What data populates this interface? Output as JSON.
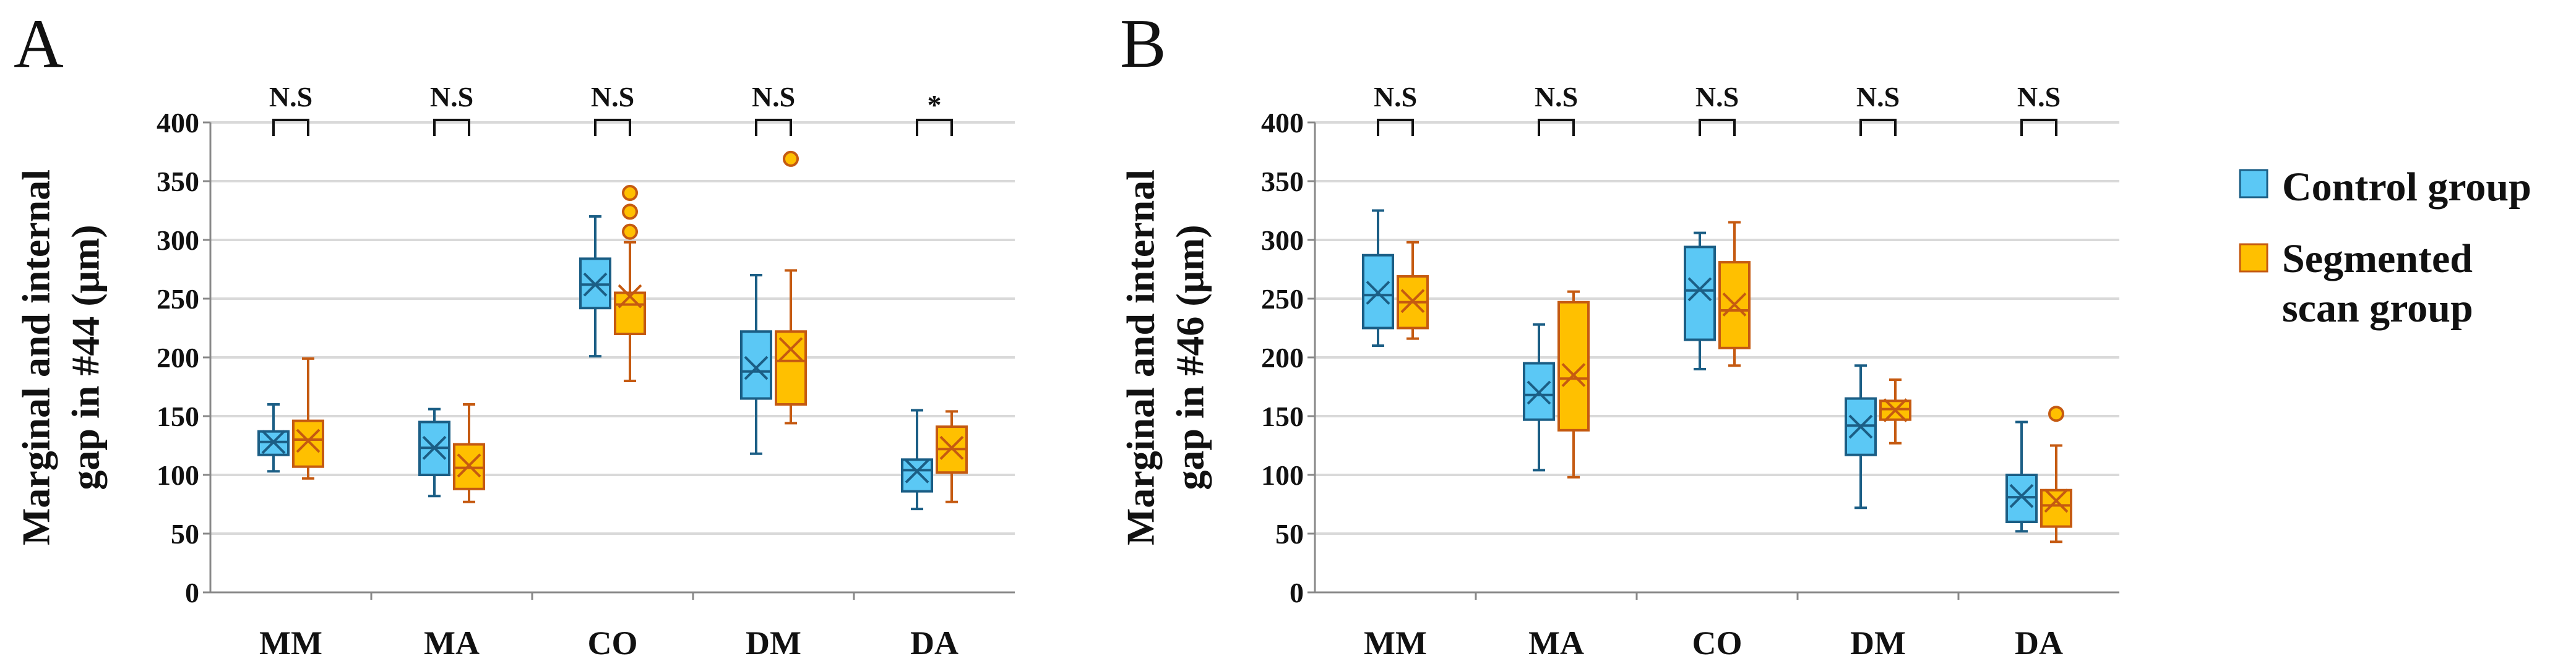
{
  "colors": {
    "control_fill": "#5BC8F5",
    "control_edge": "#1B5E85",
    "seg_fill": "#FFC000",
    "seg_edge": "#C55A11",
    "grid": "#D9D9D9",
    "axis": "#888888",
    "text": "#111111"
  },
  "legend": {
    "items": [
      {
        "label": "Control group",
        "color": "#5BC8F5"
      },
      {
        "label": "Segmented",
        "label2": "scan group",
        "color": "#FFC000"
      }
    ]
  },
  "chart_data": [
    {
      "type": "box",
      "panel_label": "A",
      "ylabel_line1": "Marginal and internal",
      "ylabel_line2": "gap in #44 (μm)",
      "ylim": [
        0,
        400
      ],
      "yticks": [
        0,
        50,
        100,
        150,
        200,
        250,
        300,
        350,
        400
      ],
      "categories": [
        "MM",
        "MA",
        "CO",
        "DM",
        "DA"
      ],
      "significance": [
        "N.S",
        "N.S",
        "N.S",
        "N.S",
        "*"
      ],
      "series": [
        {
          "name": "Control group",
          "boxes": [
            {
              "min": 103,
              "q1": 117,
              "median": 128,
              "q3": 137,
              "max": 160,
              "mean": 128,
              "outliers": []
            },
            {
              "min": 82,
              "q1": 100,
              "median": 123,
              "q3": 145,
              "max": 156,
              "mean": 123,
              "outliers": []
            },
            {
              "min": 201,
              "q1": 242,
              "median": 262,
              "q3": 284,
              "max": 320,
              "mean": 262,
              "outliers": []
            },
            {
              "min": 118,
              "q1": 165,
              "median": 188,
              "q3": 222,
              "max": 270,
              "mean": 191,
              "outliers": []
            },
            {
              "min": 71,
              "q1": 86,
              "median": 104,
              "q3": 113,
              "max": 155,
              "mean": 103,
              "outliers": []
            }
          ]
        },
        {
          "name": "Segmented scan group",
          "boxes": [
            {
              "min": 97,
              "q1": 107,
              "median": 130,
              "q3": 146,
              "max": 199,
              "mean": 129,
              "outliers": []
            },
            {
              "min": 77,
              "q1": 88,
              "median": 106,
              "q3": 126,
              "max": 160,
              "mean": 108,
              "outliers": []
            },
            {
              "min": 180,
              "q1": 220,
              "median": 245,
              "q3": 255,
              "max": 298,
              "mean": 252,
              "outliers": [
                307,
                324,
                340
              ]
            },
            {
              "min": 144,
              "q1": 160,
              "median": 197,
              "q3": 222,
              "max": 274,
              "mean": 207,
              "outliers": [
                369
              ]
            },
            {
              "min": 77,
              "q1": 102,
              "median": 122,
              "q3": 141,
              "max": 154,
              "mean": 123,
              "outliers": []
            }
          ]
        }
      ]
    },
    {
      "type": "box",
      "panel_label": "B",
      "ylabel_line1": "Marginal and internal",
      "ylabel_line2": "gap in #46 (μm)",
      "ylim": [
        0,
        400
      ],
      "yticks": [
        0,
        50,
        100,
        150,
        200,
        250,
        300,
        350,
        400
      ],
      "categories": [
        "MM",
        "MA",
        "CO",
        "DM",
        "DA"
      ],
      "significance": [
        "N.S",
        "N.S",
        "N.S",
        "N.S",
        "N.S"
      ],
      "series": [
        {
          "name": "Control group",
          "boxes": [
            {
              "min": 210,
              "q1": 225,
              "median": 253,
              "q3": 287,
              "max": 325,
              "mean": 255,
              "outliers": []
            },
            {
              "min": 104,
              "q1": 147,
              "median": 168,
              "q3": 195,
              "max": 228,
              "mean": 170,
              "outliers": []
            },
            {
              "min": 190,
              "q1": 215,
              "median": 257,
              "q3": 294,
              "max": 306,
              "mean": 258,
              "outliers": []
            },
            {
              "min": 72,
              "q1": 117,
              "median": 142,
              "q3": 165,
              "max": 193,
              "mean": 141,
              "outliers": []
            },
            {
              "min": 52,
              "q1": 60,
              "median": 81,
              "q3": 100,
              "max": 145,
              "mean": 82,
              "outliers": []
            }
          ]
        },
        {
          "name": "Segmented scan group",
          "boxes": [
            {
              "min": 216,
              "q1": 225,
              "median": 247,
              "q3": 269,
              "max": 298,
              "mean": 248,
              "outliers": []
            },
            {
              "min": 98,
              "q1": 138,
              "median": 182,
              "q3": 247,
              "max": 256,
              "mean": 185,
              "outliers": []
            },
            {
              "min": 193,
              "q1": 208,
              "median": 240,
              "q3": 281,
              "max": 315,
              "mean": 245,
              "outliers": []
            },
            {
              "min": 127,
              "q1": 147,
              "median": 156,
              "q3": 163,
              "max": 181,
              "mean": 155,
              "outliers": []
            },
            {
              "min": 43,
              "q1": 56,
              "median": 74,
              "q3": 87,
              "max": 125,
              "mean": 78,
              "outliers": [
                152
              ]
            }
          ]
        }
      ]
    }
  ]
}
